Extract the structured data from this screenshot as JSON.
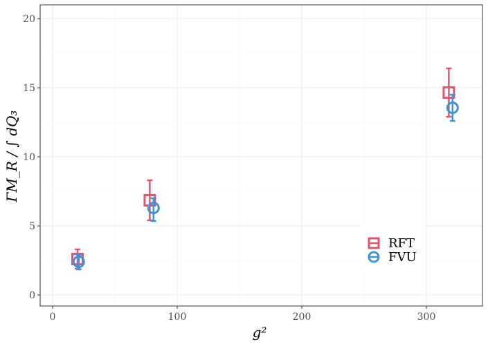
{
  "chart_data": {
    "type": "scatter",
    "title": "",
    "xlabel": "g²",
    "ylabel": "ΓM_R / ∫ dQ₃",
    "xlim": [
      -10,
      345
    ],
    "ylim": [
      -0.8,
      21
    ],
    "x_ticks": [
      0,
      100,
      200,
      300
    ],
    "y_ticks": [
      0,
      5,
      10,
      15,
      20
    ],
    "x_tick_labels": [
      "0",
      "100",
      "200",
      "300"
    ],
    "y_tick_labels": [
      "0",
      "5",
      "10",
      "15",
      "20"
    ],
    "grid": true,
    "legend_position": "bottom-right",
    "series": [
      {
        "name": "RFT",
        "marker": "square",
        "color": "#e0566e",
        "points": [
          {
            "x": 20,
            "y": 2.6,
            "err_low": 1.9,
            "err_high": 3.3
          },
          {
            "x": 78,
            "y": 6.85,
            "err_low": 5.4,
            "err_high": 8.3
          },
          {
            "x": 318,
            "y": 14.65,
            "err_low": 12.9,
            "err_high": 16.4
          }
        ]
      },
      {
        "name": "FVU",
        "marker": "circle",
        "color": "#3a95dd",
        "points": [
          {
            "x": 21,
            "y": 2.4,
            "err_low": 1.85,
            "err_high": 2.9
          },
          {
            "x": 81,
            "y": 6.3,
            "err_low": 5.35,
            "err_high": 7.0
          },
          {
            "x": 321,
            "y": 13.55,
            "err_low": 12.6,
            "err_high": 14.5
          }
        ]
      }
    ]
  }
}
